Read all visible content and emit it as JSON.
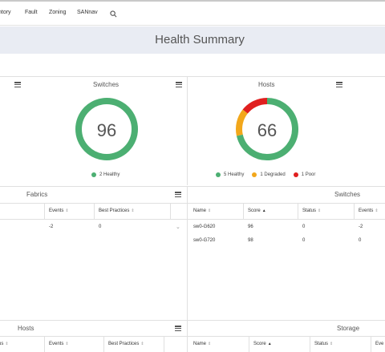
{
  "nav": {
    "items": [
      "ntory",
      "Fault",
      "Zoning",
      "SANnav"
    ],
    "search_icon": "search-icon"
  },
  "page": {
    "title": "Health Summary"
  },
  "switches_card": {
    "title": "Switches",
    "score": "96",
    "legend": [
      {
        "label": "2 Healthy",
        "color": "#4caf72"
      }
    ]
  },
  "hosts_card": {
    "title": "Hosts",
    "score": "66",
    "legend": [
      {
        "label": "5 Healthy",
        "color": "#4caf72"
      },
      {
        "label": "1 Degraded",
        "color": "#f2a71b"
      },
      {
        "label": "1 Poor",
        "color": "#e01f1f"
      }
    ]
  },
  "fabrics_table": {
    "title": "Fabrics",
    "columns": [
      "Events",
      "Best Practices"
    ],
    "rows": [
      [
        "-2",
        "0"
      ]
    ]
  },
  "switches_table": {
    "title": "Switches",
    "columns": [
      "Name",
      "Score",
      "Status",
      "Events"
    ],
    "rows": [
      [
        "sw0-G620",
        "96",
        "0",
        "-2"
      ],
      [
        "sw0-G720",
        "98",
        "0",
        "0"
      ]
    ]
  },
  "hosts_table": {
    "title": "Hosts",
    "columns": [
      "us",
      "Events",
      "Best Practices"
    ]
  },
  "storage_table": {
    "title": "Storage",
    "columns": [
      "Name",
      "Score",
      "Status",
      "Eve"
    ]
  },
  "colors": {
    "healthy": "#4caf72",
    "degraded": "#f2a71b",
    "poor": "#e01f1f",
    "title_band": "#e9ecf3"
  }
}
